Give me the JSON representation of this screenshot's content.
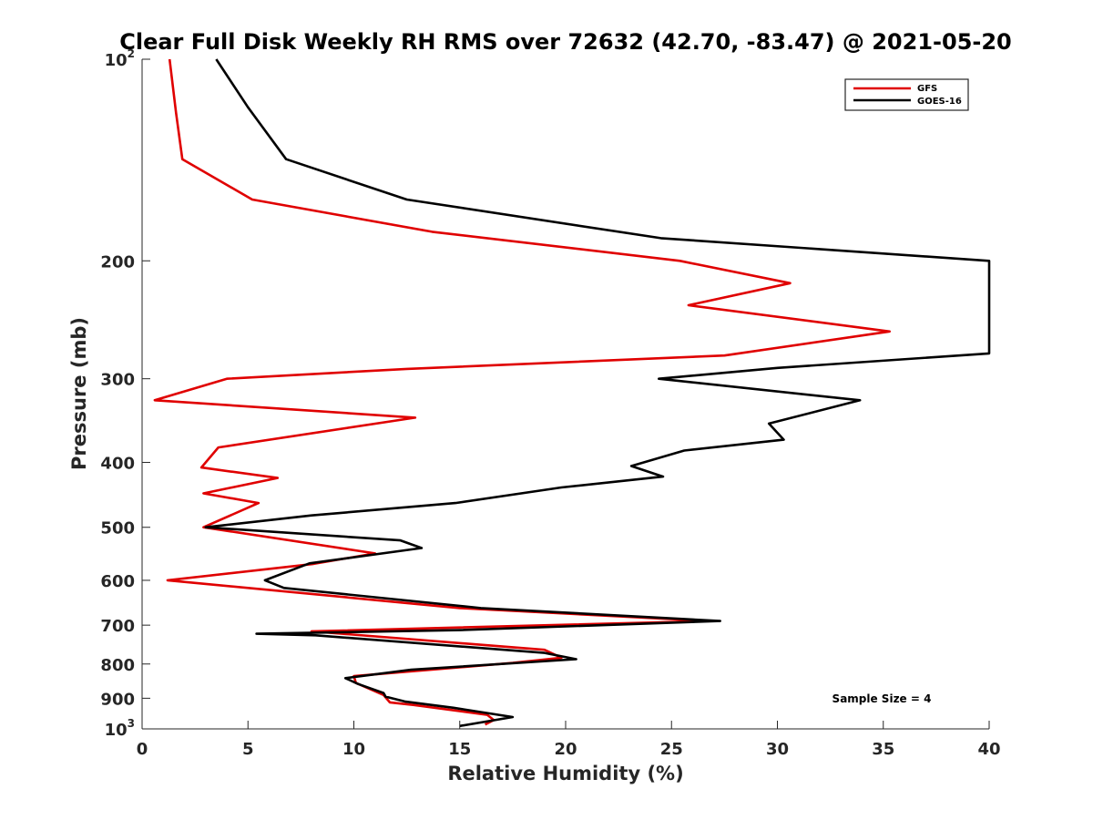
{
  "chart_data": {
    "type": "line",
    "title": "Clear Full Disk Weekly RH RMS over 72632 (42.70, -83.47) @ 2021-05-20",
    "xlabel": "Relative Humidity (%)",
    "ylabel": "Pressure (mb)",
    "xlim": [
      0,
      40
    ],
    "ylim": [
      100,
      1000
    ],
    "y_scale": "log",
    "y_reversed": true,
    "grid": false,
    "legend_placement": "top-right",
    "x_ticks": [
      "0",
      "5",
      "10",
      "15",
      "20",
      "25",
      "30",
      "35",
      "40"
    ],
    "y_ticks": [
      {
        "value": 100,
        "base": "10",
        "exp": "2"
      },
      {
        "value": 200,
        "label": "200"
      },
      {
        "value": 300,
        "label": "300"
      },
      {
        "value": 400,
        "label": "400"
      },
      {
        "value": 500,
        "label": "500"
      },
      {
        "value": 600,
        "label": "600"
      },
      {
        "value": 700,
        "label": "700"
      },
      {
        "value": 800,
        "label": "800"
      },
      {
        "value": 900,
        "label": "900"
      },
      {
        "value": 1000,
        "base": "10",
        "exp": "3"
      }
    ],
    "annotation": "Sample Size = 4",
    "series": [
      {
        "name": "GFS",
        "color": "#e00000",
        "x": [
          1.3,
          1.6,
          1.9,
          5.2,
          13.7,
          25.4,
          30.6,
          25.8,
          35.3,
          27.5,
          12.5,
          4.0,
          0.6,
          12.9,
          3.6,
          2.8,
          6.4,
          2.9,
          5.5,
          2.9,
          11.0,
          8.1,
          1.2,
          15.0,
          26.8,
          8.0,
          19.0,
          19.8,
          17.5,
          10.0,
          10.1,
          11.4,
          11.7,
          12.8,
          16.3,
          16.6,
          16.2
        ],
        "y": [
          100,
          120,
          141,
          162,
          181,
          200,
          216,
          233,
          255,
          277,
          290,
          300,
          323,
          343,
          380,
          407,
          422,
          445,
          460,
          500,
          547,
          567,
          600,
          660,
          690,
          715,
          762,
          783,
          797,
          834,
          854,
          890,
          913,
          921,
          953,
          970,
          985
        ]
      },
      {
        "name": "GOES-16",
        "color": "#000000",
        "x": [
          3.5,
          5.0,
          6.8,
          12.5,
          24.5,
          40.0,
          40.0,
          30.0,
          24.4,
          33.9,
          29.6,
          30.3,
          25.6,
          23.1,
          24.6,
          19.8,
          14.8,
          8.0,
          3.0,
          12.2,
          13.2,
          7.9,
          5.8,
          6.7,
          16.0,
          27.3,
          15.0,
          5.4,
          8.2,
          19.0,
          20.5,
          12.7,
          9.6,
          10.2,
          11.4,
          11.5,
          12.4,
          14.7,
          17.5,
          15.0
        ],
        "y": [
          100,
          118,
          141,
          162,
          185,
          200,
          275,
          289,
          300,
          323,
          350,
          370,
          384,
          405,
          420,
          436,
          460,
          480,
          500,
          523,
          537,
          566,
          600,
          616,
          660,
          690,
          712,
          721,
          725,
          770,
          787,
          816,
          840,
          857,
          884,
          895,
          910,
          930,
          960,
          990
        ]
      }
    ]
  }
}
